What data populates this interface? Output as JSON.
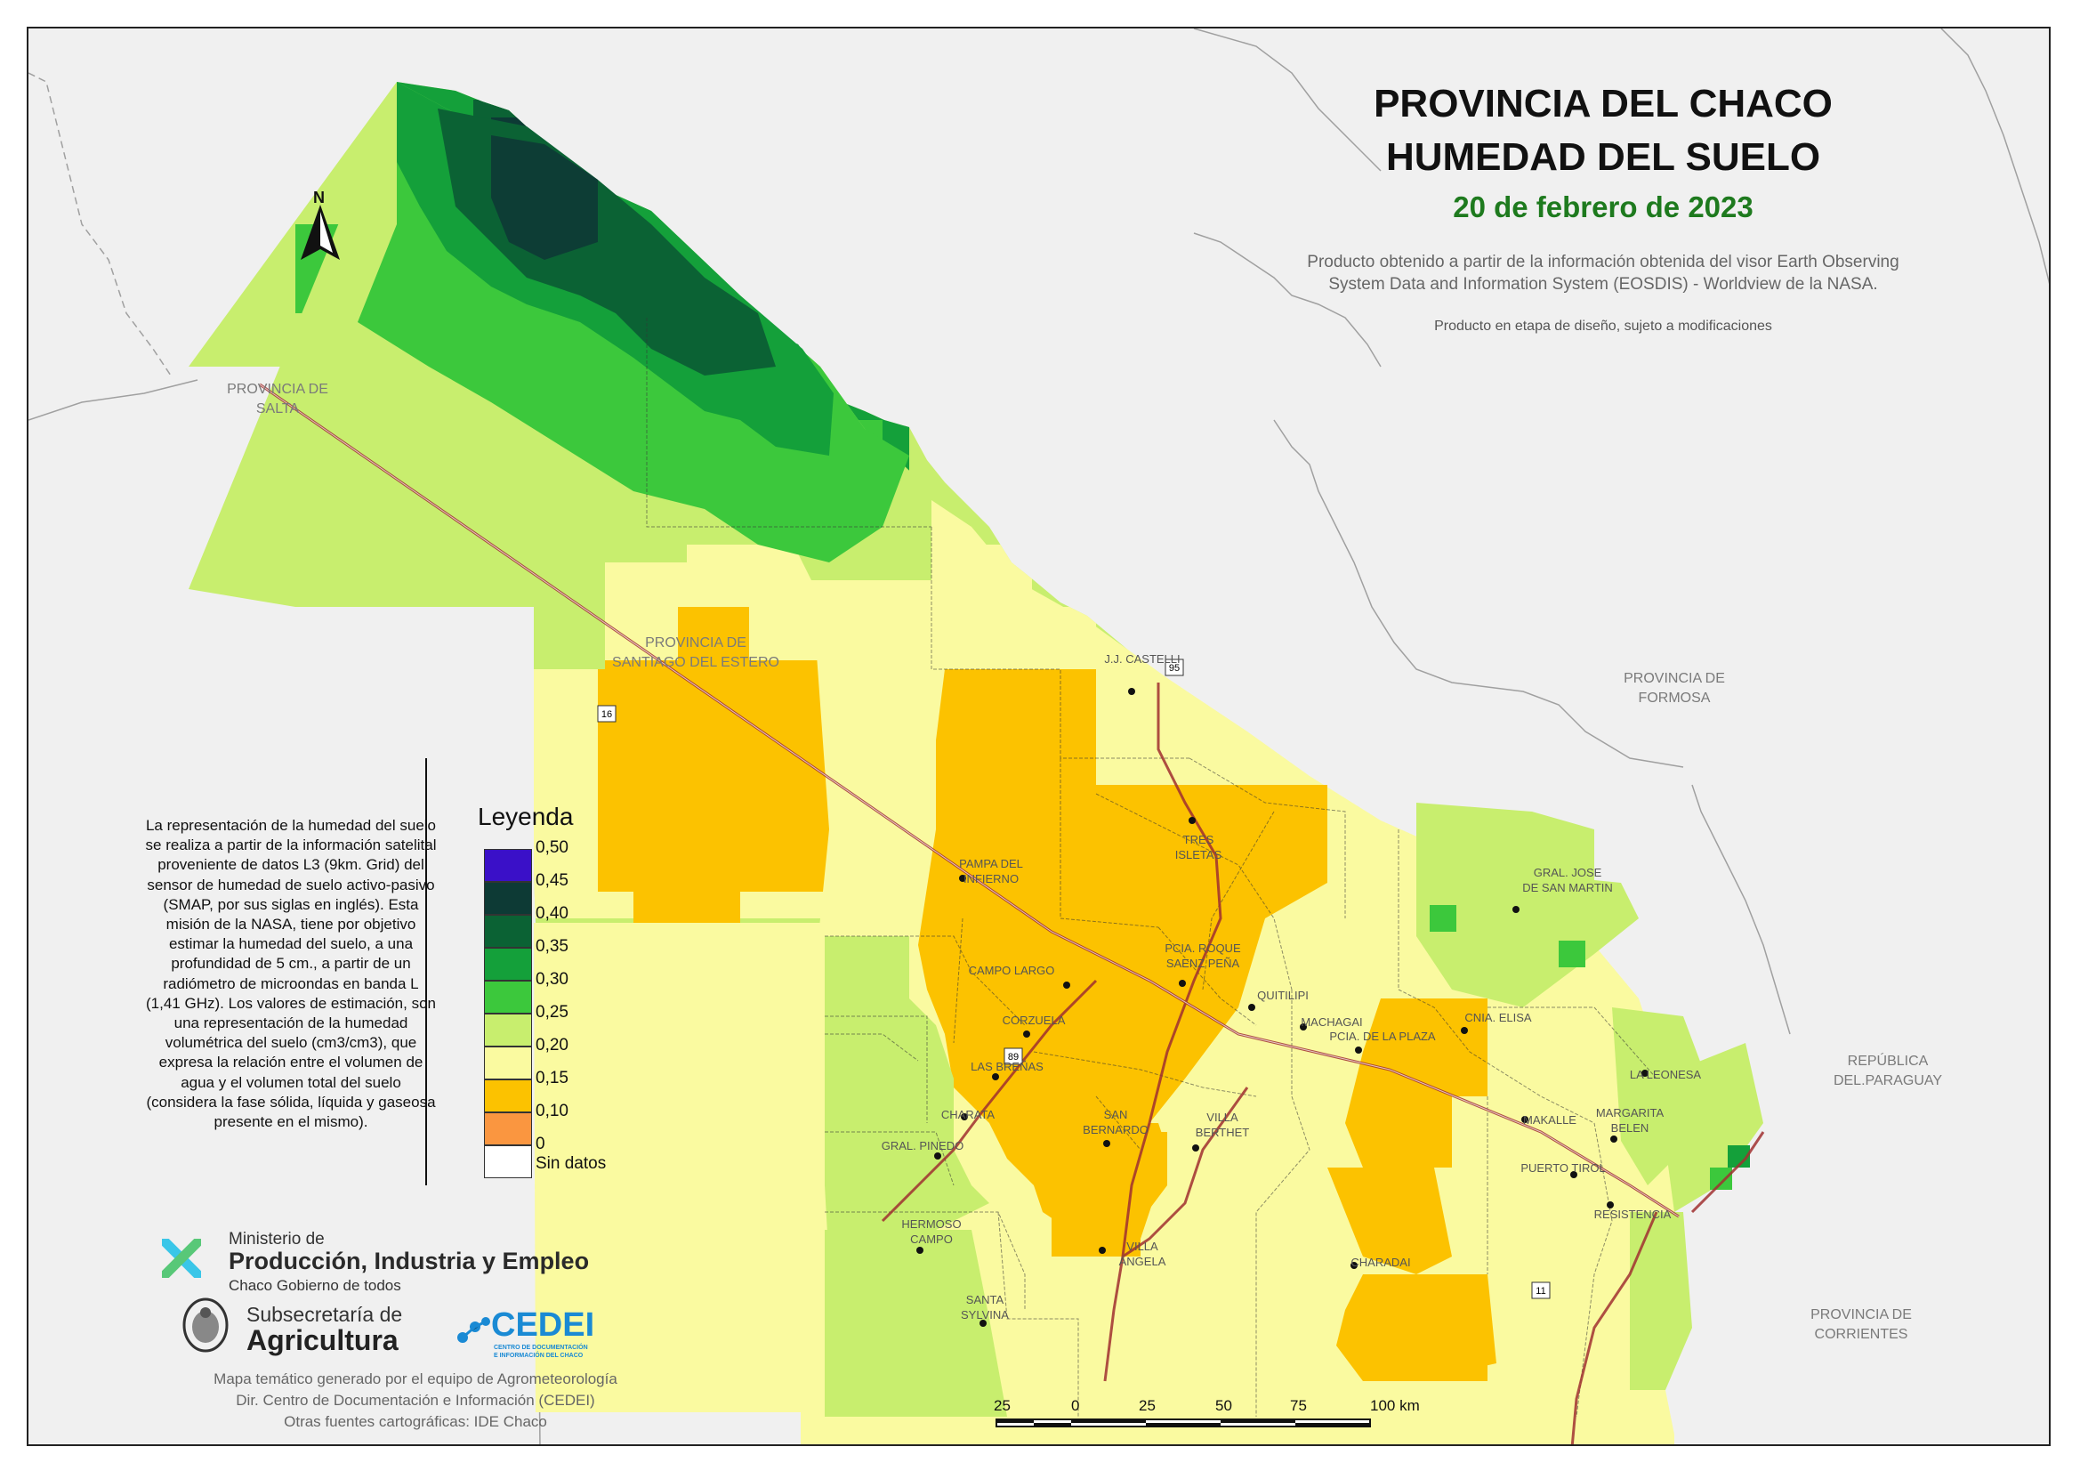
{
  "title": {
    "line1": "PROVINCIA DEL CHACO",
    "line2": "HUMEDAD DEL SUELO"
  },
  "date": "20 de febrero de 2023",
  "credit": {
    "line1": "Producto obtenido a partir de la información obtenida del visor Earth Observing",
    "line2": "System Data and Information System (EOSDIS) - Worldview de la NASA."
  },
  "note": "Producto en etapa de diseño, sujeto a modificaciones",
  "north_label": "N",
  "regions": {
    "salta": [
      "PROVINCIA DE",
      "SALTA"
    ],
    "santiago": [
      "PROVINCIA DE",
      "SANTIAGO DEL ESTERO"
    ],
    "formosa": [
      "PROVINCIA DE",
      "FORMOSA"
    ],
    "paraguay": [
      "REPÚBLICA",
      "DEL.PARAGUAY"
    ],
    "corrientes": [
      "PROVINCIA DE",
      "CORRIENTES"
    ]
  },
  "towns": [
    {
      "name": [
        "J.J. CASTELLI"
      ]
    },
    {
      "name": [
        "TRES",
        "ISLETAS"
      ]
    },
    {
      "name": [
        "PAMPA DEL",
        "INFIERNO"
      ]
    },
    {
      "name": [
        "GRAL. JOSE",
        "DE SAN MARTIN"
      ]
    },
    {
      "name": [
        "PCIA. ROQUE",
        "SAENZ PEÑA"
      ]
    },
    {
      "name": [
        "CAMPO LARGO"
      ]
    },
    {
      "name": [
        "QUITILIPI"
      ]
    },
    {
      "name": [
        "CNIA. ELISA"
      ]
    },
    {
      "name": [
        "CORZUELA"
      ]
    },
    {
      "name": [
        "MACHAGAI"
      ]
    },
    {
      "name": [
        "PCIA. DE LA PLAZA"
      ]
    },
    {
      "name": [
        "LAS BREÑAS"
      ]
    },
    {
      "name": [
        "LA LEONESA"
      ]
    },
    {
      "name": [
        "CHARATA"
      ]
    },
    {
      "name": [
        "SAN",
        "BERNARDO"
      ]
    },
    {
      "name": [
        "VILLA",
        "BERTHET"
      ]
    },
    {
      "name": [
        "MAKALLE"
      ]
    },
    {
      "name": [
        "MARGARITA",
        "BELEN"
      ]
    },
    {
      "name": [
        "GRAL. PINEDO"
      ]
    },
    {
      "name": [
        "PUERTO TIROL"
      ]
    },
    {
      "name": [
        "RESISTENCIA"
      ]
    },
    {
      "name": [
        "HERMOSO",
        "CAMPO"
      ]
    },
    {
      "name": [
        "VILLA",
        "ÁNGELA"
      ]
    },
    {
      "name": [
        "CHARADAI"
      ]
    },
    {
      "name": [
        "SANTA",
        "SYLVINA"
      ]
    }
  ],
  "routes": [
    "16",
    "95",
    "89",
    "11"
  ],
  "description": "La representación de la humedad del suelo se realiza a partir de la información satelital proveniente de datos L3 (9km. Grid) del sensor de humedad de suelo activo-pasivo (SMAP, por sus siglas en inglés). Esta misión de la NASA, tiene por objetivo estimar la humedad del suelo, a una profundidad de 5 cm., a partir de un radiómetro de microondas en banda L (1,41 GHz). Los valores de estimación, son una representación de la humedad volumétrica del suelo (cm3/cm3), que expresa la relación entre el volumen de agua y el volumen total del suelo (considera la fase sólida, líquida y gaseosa presente en el mismo).",
  "legend": {
    "title": "Leyenda",
    "labels": [
      "0,50",
      "0,45",
      "0,40",
      "0,35",
      "0,30",
      "0,25",
      "0,20",
      "0,15",
      "0,10",
      "0"
    ],
    "classes": [
      {
        "range": "0,45 – 0,50",
        "color": "#3a10c8"
      },
      {
        "range": "0,40 – 0,45",
        "color": "#0d3a35"
      },
      {
        "range": "0,35 – 0,40",
        "color": "#0b6234"
      },
      {
        "range": "0,30 – 0,35",
        "color": "#14a03a"
      },
      {
        "range": "0,25 – 0,30",
        "color": "#3cc83c"
      },
      {
        "range": "0,20 – 0,25",
        "color": "#c8ee6e"
      },
      {
        "range": "0,15 – 0,20",
        "color": "#fafaa0"
      },
      {
        "range": "0,10 – 0,15",
        "color": "#fcc200"
      },
      {
        "range": "0 – 0,10",
        "color": "#fa9640"
      },
      {
        "range": "Sin datos",
        "color": "#ffffff"
      }
    ],
    "no_data_label": "Sin datos"
  },
  "ministry": {
    "line1": "Ministerio de",
    "line2": "Producción, Industria y Empleo",
    "line3": "Chaco Gobierno de todos"
  },
  "subsecretaria": {
    "line1": "Subsecretaría de",
    "line2": "Agricultura"
  },
  "cedei": {
    "name": "CEDEI",
    "sub1": "CENTRO DE DOCUMENTACIÓN",
    "sub2": "E INFORMACIÓN DEL CHACO"
  },
  "footer": [
    "Mapa temático generado por el equipo de Agrometeorología",
    "Dir. Centro de Documentación e Información (CEDEI)",
    "Otras fuentes cartográficas: IDE Chaco"
  ],
  "scale": {
    "labels": [
      "25",
      "0",
      "25",
      "50",
      "75",
      "100 km"
    ]
  }
}
